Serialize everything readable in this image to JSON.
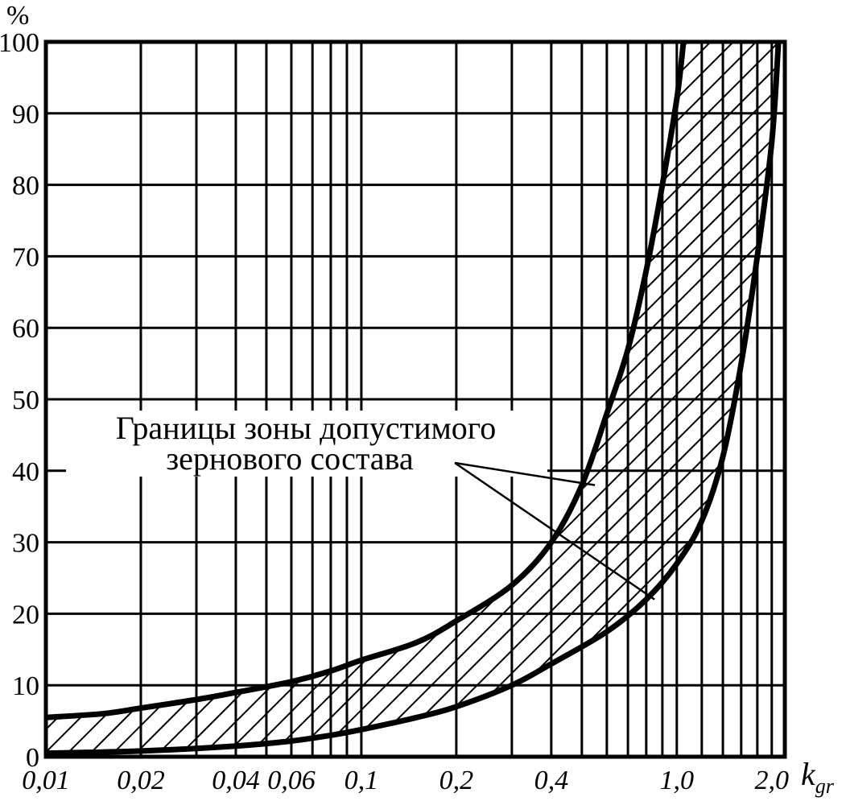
{
  "chart_data": {
    "type": "area",
    "title": "",
    "ylabel": "%",
    "xlabel": "k",
    "xlabel_subscript": "gr",
    "xscale": "log",
    "xlim": [
      0.01,
      2.2
    ],
    "ylim": [
      0,
      100
    ],
    "grid": true,
    "x_tick_labels": [
      {
        "value": 0.01,
        "label": "0,01"
      },
      {
        "value": 0.02,
        "label": "0,02"
      },
      {
        "value": 0.04,
        "label": "0,04"
      },
      {
        "value": 0.06,
        "label": "0,06"
      },
      {
        "value": 0.1,
        "label": "0,1"
      },
      {
        "value": 0.2,
        "label": "0,2"
      },
      {
        "value": 0.4,
        "label": "0,4"
      },
      {
        "value": 1.0,
        "label": "1,0"
      },
      {
        "value": 2.0,
        "label": "2,0"
      }
    ],
    "x_grid_lines": [
      0.01,
      0.02,
      0.03,
      0.04,
      0.05,
      0.06,
      0.07,
      0.08,
      0.09,
      0.1,
      0.2,
      0.3,
      0.4,
      0.5,
      0.6,
      0.7,
      0.8,
      0.9,
      1.0,
      1.2,
      1.4,
      1.6,
      1.8,
      2.0,
      2.2
    ],
    "y_ticks": [
      0,
      10,
      20,
      30,
      40,
      50,
      60,
      70,
      80,
      90,
      100
    ],
    "series": [
      {
        "values": [
          {
            "x": 0.01,
            "y": 5.5
          },
          {
            "x": 0.015,
            "y": 6.0
          },
          {
            "x": 0.02,
            "y": 6.8
          },
          {
            "x": 0.03,
            "y": 8.0
          },
          {
            "x": 0.04,
            "y": 9.0
          },
          {
            "x": 0.06,
            "y": 10.5
          },
          {
            "x": 0.08,
            "y": 12.0
          },
          {
            "x": 0.1,
            "y": 13.5
          },
          {
            "x": 0.15,
            "y": 16.0
          },
          {
            "x": 0.2,
            "y": 19.0
          },
          {
            "x": 0.3,
            "y": 24.0
          },
          {
            "x": 0.4,
            "y": 30.0
          },
          {
            "x": 0.5,
            "y": 38.0
          },
          {
            "x": 0.6,
            "y": 48.0
          },
          {
            "x": 0.7,
            "y": 57.0
          },
          {
            "x": 0.8,
            "y": 68.0
          },
          {
            "x": 0.9,
            "y": 80.0
          },
          {
            "x": 1.0,
            "y": 92.0
          },
          {
            "x": 1.05,
            "y": 100.0
          }
        ]
      },
      {
        "values": [
          {
            "x": 0.01,
            "y": 0.5
          },
          {
            "x": 0.02,
            "y": 0.8
          },
          {
            "x": 0.04,
            "y": 1.5
          },
          {
            "x": 0.06,
            "y": 2.2
          },
          {
            "x": 0.08,
            "y": 3.0
          },
          {
            "x": 0.1,
            "y": 3.8
          },
          {
            "x": 0.15,
            "y": 5.5
          },
          {
            "x": 0.2,
            "y": 7.0
          },
          {
            "x": 0.3,
            "y": 10.0
          },
          {
            "x": 0.4,
            "y": 13.0
          },
          {
            "x": 0.6,
            "y": 17.5
          },
          {
            "x": 0.8,
            "y": 22.0
          },
          {
            "x": 1.0,
            "y": 27.0
          },
          {
            "x": 1.2,
            "y": 33.0
          },
          {
            "x": 1.4,
            "y": 42.0
          },
          {
            "x": 1.6,
            "y": 55.0
          },
          {
            "x": 1.8,
            "y": 70.0
          },
          {
            "x": 2.0,
            "y": 86.0
          },
          {
            "x": 2.1,
            "y": 100.0
          }
        ]
      }
    ],
    "annotation": {
      "lines": [
        "Границы зоны допустимого",
        "зернового состава"
      ]
    }
  }
}
